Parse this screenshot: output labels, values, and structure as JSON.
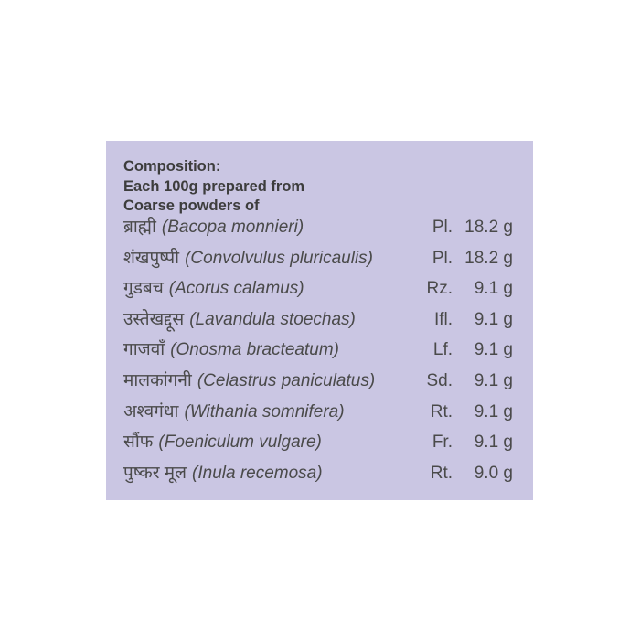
{
  "heading": {
    "line1": "Composition:",
    "line2": "Each 100g prepared from",
    "line3": "Coarse powders of"
  },
  "colors": {
    "panel_background": "#cac6e3",
    "text": "#4a4a4a"
  },
  "ingredients": [
    {
      "hindi": "ब्राह्मी",
      "latin": "(Bacopa monnieri)",
      "part": "Pl.",
      "amount": "18.2 g"
    },
    {
      "hindi": "शंखपुष्पी",
      "latin": "(Convolvulus pluricaulis)",
      "part": "Pl.",
      "amount": "18.2 g"
    },
    {
      "hindi": "गुडबच",
      "latin": "(Acorus calamus)",
      "part": "Rz.",
      "amount": "9.1 g"
    },
    {
      "hindi": "उस्तेखद्दूस",
      "latin": "(Lavandula stoechas)",
      "part": "Ifl.",
      "amount": "9.1 g"
    },
    {
      "hindi": "गाजवाँ",
      "latin": "(Onosma bracteatum)",
      "part": "Lf.",
      "amount": "9.1 g"
    },
    {
      "hindi": "मालकांगनी",
      "latin": "(Celastrus paniculatus)",
      "part": "Sd.",
      "amount": "9.1 g"
    },
    {
      "hindi": "अश्वगंधा",
      "latin": "(Withania somnifera)",
      "part": "Rt.",
      "amount": "9.1 g"
    },
    {
      "hindi": "सौंफ",
      "latin": "(Foeniculum vulgare)",
      "part": "Fr.",
      "amount": "9.1 g"
    },
    {
      "hindi": "पुष्कर मूल",
      "latin": "(Inula recemosa)",
      "part": "Rt.",
      "amount": "9.0 g"
    }
  ]
}
